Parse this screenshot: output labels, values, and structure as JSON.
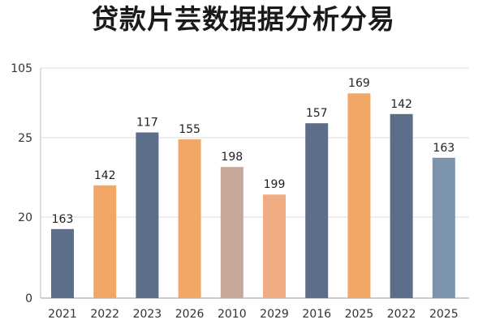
{
  "chart_data": {
    "type": "bar",
    "title": "贷款片芸数据据分析分易",
    "xlabel": "",
    "ylabel": "",
    "y_tick_labels": [
      "0",
      "20",
      "25",
      "105"
    ],
    "categories": [
      "2021",
      "2022",
      "2023",
      "2026",
      "2010",
      "2029",
      "2016",
      "2025",
      "2022",
      "2025"
    ],
    "values": [
      163,
      142,
      117,
      155,
      198,
      199,
      157,
      169,
      142,
      163
    ],
    "bar_levels": [
      0.3,
      0.49,
      0.72,
      0.69,
      0.57,
      0.45,
      0.76,
      0.89,
      0.8,
      0.61
    ],
    "colors": [
      "#5c6e89",
      "#f1a867",
      "#5c6e89",
      "#f1a867",
      "#c7a79a",
      "#f2ac84",
      "#5c6e89",
      "#f1a867",
      "#5c6e89",
      "#7c93ad"
    ],
    "grid": true,
    "legend": "none"
  }
}
